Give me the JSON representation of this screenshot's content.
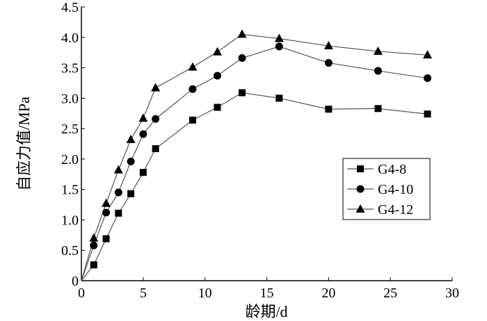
{
  "chart_data": {
    "type": "line",
    "title": "",
    "xlabel": "龄期/d",
    "ylabel": "自应力值/MPa",
    "xlim": [
      0,
      30
    ],
    "ylim": [
      0,
      4.5
    ],
    "xticks": [
      "0",
      "5",
      "10",
      "15",
      "20",
      "25",
      "30"
    ],
    "yticks": [
      "0",
      "0.5",
      "1.0",
      "1.5",
      "2.0",
      "2.5",
      "3.0",
      "3.5",
      "4.0",
      "4.5"
    ],
    "grid": false,
    "legend_position": "center-right",
    "x": [
      0,
      1,
      2,
      3,
      4,
      5,
      6,
      9,
      11,
      13,
      16,
      20,
      24,
      28
    ],
    "series": [
      {
        "name": "G4-8",
        "marker": "square",
        "color": "#000000",
        "values": [
          0,
          0.26,
          0.69,
          1.11,
          1.43,
          1.78,
          2.17,
          2.64,
          2.85,
          3.09,
          3.0,
          2.82,
          2.83,
          2.74
        ]
      },
      {
        "name": "G4-10",
        "marker": "circle",
        "color": "#000000",
        "values": [
          0,
          0.58,
          1.12,
          1.45,
          1.96,
          2.41,
          2.66,
          3.15,
          3.37,
          3.66,
          3.85,
          3.58,
          3.45,
          3.33
        ]
      },
      {
        "name": "G4-12",
        "marker": "triangle",
        "color": "#000000",
        "values": [
          0,
          0.7,
          1.27,
          1.82,
          2.32,
          2.67,
          3.17,
          3.51,
          3.76,
          4.05,
          3.98,
          3.86,
          3.77,
          3.71
        ]
      }
    ]
  }
}
